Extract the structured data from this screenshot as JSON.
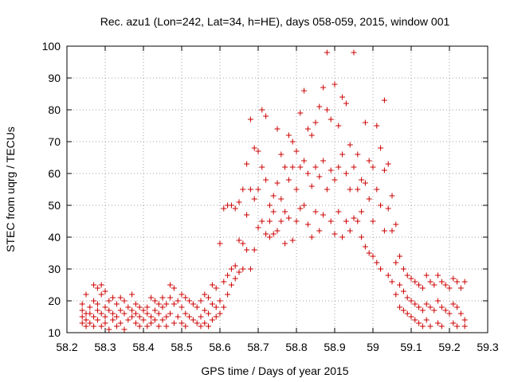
{
  "chart_data": {
    "type": "scatter",
    "title": "Rec. azu1 (Lon=242, Lat=34, h=HE), days 058-059, 2015, window 001",
    "xlabel": "GPS time / Days of year 2015",
    "ylabel": "STEC from uqrg / TECUs",
    "xlim": [
      58.2,
      59.3
    ],
    "ylim": [
      10,
      100
    ],
    "xticks": [
      "58.2",
      "58.3",
      "58.4",
      "58.5",
      "58.6",
      "58.7",
      "58.8",
      "58.9",
      "59",
      "59.1",
      "59.2",
      "59.3"
    ],
    "yticks": [
      "10",
      "20",
      "30",
      "40",
      "50",
      "60",
      "70",
      "80",
      "90",
      "100"
    ],
    "grid": true,
    "marker": "+",
    "color": "#cc0000",
    "points": [
      [
        58.24,
        19
      ],
      [
        58.24,
        17
      ],
      [
        58.24,
        15
      ],
      [
        58.24,
        13
      ],
      [
        58.25,
        22
      ],
      [
        58.25,
        16
      ],
      [
        58.25,
        14
      ],
      [
        58.25,
        12
      ],
      [
        58.26,
        18
      ],
      [
        58.26,
        16
      ],
      [
        58.26,
        13
      ],
      [
        58.27,
        25
      ],
      [
        58.27,
        20
      ],
      [
        58.27,
        15
      ],
      [
        58.27,
        12
      ],
      [
        58.28,
        24
      ],
      [
        58.28,
        19
      ],
      [
        58.28,
        17
      ],
      [
        58.28,
        14
      ],
      [
        58.29,
        25
      ],
      [
        58.29,
        22
      ],
      [
        58.29,
        16
      ],
      [
        58.29,
        12
      ],
      [
        58.3,
        23
      ],
      [
        58.3,
        18
      ],
      [
        58.3,
        15
      ],
      [
        58.3,
        13
      ],
      [
        58.31,
        20
      ],
      [
        58.31,
        17
      ],
      [
        58.31,
        11
      ],
      [
        58.32,
        21
      ],
      [
        58.32,
        16
      ],
      [
        58.32,
        14
      ],
      [
        58.33,
        19
      ],
      [
        58.33,
        15
      ],
      [
        58.33,
        12
      ],
      [
        58.34,
        21
      ],
      [
        58.34,
        17
      ],
      [
        58.34,
        13
      ],
      [
        58.35,
        20
      ],
      [
        58.35,
        16
      ],
      [
        58.35,
        11
      ],
      [
        58.36,
        18
      ],
      [
        58.36,
        14
      ],
      [
        58.37,
        22
      ],
      [
        58.37,
        17
      ],
      [
        58.37,
        15
      ],
      [
        58.38,
        19
      ],
      [
        58.38,
        16
      ],
      [
        58.38,
        13
      ],
      [
        58.39,
        18
      ],
      [
        58.39,
        15
      ],
      [
        58.39,
        12
      ],
      [
        58.4,
        17
      ],
      [
        58.4,
        14
      ],
      [
        58.41,
        18
      ],
      [
        58.41,
        16
      ],
      [
        58.41,
        12
      ],
      [
        58.42,
        21
      ],
      [
        58.42,
        15
      ],
      [
        58.42,
        13
      ],
      [
        58.43,
        20
      ],
      [
        58.43,
        17
      ],
      [
        58.43,
        14
      ],
      [
        58.44,
        19
      ],
      [
        58.44,
        16
      ],
      [
        58.44,
        12
      ],
      [
        58.45,
        21
      ],
      [
        58.45,
        18
      ],
      [
        58.45,
        14
      ],
      [
        58.46,
        19
      ],
      [
        58.46,
        15
      ],
      [
        58.46,
        12
      ],
      [
        58.47,
        25
      ],
      [
        58.47,
        21
      ],
      [
        58.47,
        16
      ],
      [
        58.48,
        24
      ],
      [
        58.48,
        19
      ],
      [
        58.48,
        13
      ],
      [
        58.49,
        20
      ],
      [
        58.49,
        15
      ],
      [
        58.5,
        22
      ],
      [
        58.5,
        18
      ],
      [
        58.5,
        13
      ],
      [
        58.51,
        21
      ],
      [
        58.51,
        16
      ],
      [
        58.51,
        12
      ],
      [
        58.52,
        20
      ],
      [
        58.52,
        15
      ],
      [
        58.53,
        19
      ],
      [
        58.53,
        14
      ],
      [
        58.54,
        18
      ],
      [
        58.54,
        13
      ],
      [
        58.55,
        20
      ],
      [
        58.55,
        15
      ],
      [
        58.55,
        12
      ],
      [
        58.56,
        22
      ],
      [
        58.56,
        17
      ],
      [
        58.56,
        13
      ],
      [
        58.57,
        21
      ],
      [
        58.57,
        16
      ],
      [
        58.57,
        12
      ],
      [
        58.58,
        25
      ],
      [
        58.58,
        19
      ],
      [
        58.58,
        14
      ],
      [
        58.59,
        24
      ],
      [
        58.59,
        18
      ],
      [
        58.59,
        15
      ],
      [
        58.6,
        38
      ],
      [
        58.6,
        20
      ],
      [
        58.6,
        16
      ],
      [
        58.61,
        49
      ],
      [
        58.61,
        26
      ],
      [
        58.61,
        18
      ],
      [
        58.62,
        50
      ],
      [
        58.62,
        28
      ],
      [
        58.62,
        22
      ],
      [
        58.63,
        50
      ],
      [
        58.63,
        30
      ],
      [
        58.63,
        25
      ],
      [
        58.64,
        49
      ],
      [
        58.64,
        31
      ],
      [
        58.64,
        27
      ],
      [
        58.65,
        51
      ],
      [
        58.65,
        39
      ],
      [
        58.65,
        29
      ],
      [
        58.66,
        55
      ],
      [
        58.66,
        38
      ],
      [
        58.66,
        30
      ],
      [
        58.67,
        63
      ],
      [
        58.67,
        47
      ],
      [
        58.67,
        36
      ],
      [
        58.68,
        77
      ],
      [
        58.68,
        55
      ],
      [
        58.68,
        30
      ],
      [
        58.69,
        68
      ],
      [
        58.69,
        52
      ],
      [
        58.69,
        36
      ],
      [
        58.7,
        67
      ],
      [
        58.7,
        55
      ],
      [
        58.7,
        43
      ],
      [
        58.71,
        80
      ],
      [
        58.71,
        62
      ],
      [
        58.71,
        45
      ],
      [
        58.72,
        78
      ],
      [
        58.72,
        58
      ],
      [
        58.72,
        41
      ],
      [
        58.73,
        50
      ],
      [
        58.73,
        45
      ],
      [
        58.73,
        40
      ],
      [
        58.74,
        53
      ],
      [
        58.74,
        48
      ],
      [
        58.74,
        41
      ],
      [
        58.75,
        74
      ],
      [
        58.75,
        57
      ],
      [
        58.75,
        42
      ],
      [
        58.76,
        66
      ],
      [
        58.76,
        52
      ],
      [
        58.76,
        45
      ],
      [
        58.77,
        62
      ],
      [
        58.77,
        48
      ],
      [
        58.77,
        38
      ],
      [
        58.78,
        72
      ],
      [
        58.78,
        58
      ],
      [
        58.78,
        46
      ],
      [
        58.79,
        70
      ],
      [
        58.79,
        62
      ],
      [
        58.79,
        39
      ],
      [
        58.8,
        67
      ],
      [
        58.8,
        55
      ],
      [
        58.8,
        45
      ],
      [
        58.81,
        79
      ],
      [
        58.81,
        62
      ],
      [
        58.81,
        49
      ],
      [
        58.82,
        86
      ],
      [
        58.82,
        64
      ],
      [
        58.82,
        50
      ],
      [
        58.83,
        74
      ],
      [
        58.83,
        60
      ],
      [
        58.83,
        44
      ],
      [
        58.84,
        72
      ],
      [
        58.84,
        56
      ],
      [
        58.84,
        40
      ],
      [
        58.85,
        76
      ],
      [
        58.85,
        62
      ],
      [
        58.85,
        48
      ],
      [
        58.86,
        81
      ],
      [
        58.86,
        59
      ],
      [
        58.86,
        42
      ],
      [
        58.87,
        87
      ],
      [
        58.87,
        64
      ],
      [
        58.87,
        47
      ],
      [
        58.88,
        98
      ],
      [
        58.88,
        80
      ],
      [
        58.88,
        55
      ],
      [
        58.89,
        77
      ],
      [
        58.89,
        61
      ],
      [
        58.89,
        45
      ],
      [
        58.9,
        88
      ],
      [
        58.9,
        58
      ],
      [
        58.9,
        41
      ],
      [
        58.91,
        75
      ],
      [
        58.91,
        62
      ],
      [
        58.91,
        48
      ],
      [
        58.92,
        84
      ],
      [
        58.92,
        66
      ],
      [
        58.92,
        40
      ],
      [
        58.93,
        82
      ],
      [
        58.93,
        60
      ],
      [
        58.93,
        45
      ],
      [
        58.94,
        69
      ],
      [
        58.94,
        55
      ],
      [
        58.94,
        42
      ],
      [
        58.95,
        98
      ],
      [
        58.95,
        62
      ],
      [
        58.95,
        46
      ],
      [
        58.96,
        66
      ],
      [
        58.96,
        55
      ],
      [
        58.96,
        45
      ],
      [
        58.97,
        58
      ],
      [
        58.97,
        48
      ],
      [
        58.97,
        40
      ],
      [
        58.98,
        76
      ],
      [
        58.98,
        57
      ],
      [
        58.98,
        37
      ],
      [
        58.99,
        64
      ],
      [
        58.99,
        52
      ],
      [
        58.99,
        35
      ],
      [
        59.0,
        62
      ],
      [
        59.0,
        45
      ],
      [
        59.0,
        34
      ],
      [
        59.01,
        75
      ],
      [
        59.01,
        55
      ],
      [
        59.01,
        32
      ],
      [
        59.02,
        68
      ],
      [
        59.02,
        50
      ],
      [
        59.02,
        30
      ],
      [
        59.03,
        83
      ],
      [
        59.03,
        61
      ],
      [
        59.03,
        42
      ],
      [
        59.04,
        63
      ],
      [
        59.04,
        49
      ],
      [
        59.04,
        28
      ],
      [
        59.05,
        53
      ],
      [
        59.05,
        42
      ],
      [
        59.05,
        26
      ],
      [
        59.06,
        44
      ],
      [
        59.06,
        32
      ],
      [
        59.06,
        22
      ],
      [
        59.07,
        34
      ],
      [
        59.07,
        25
      ],
      [
        59.07,
        18
      ],
      [
        59.08,
        30
      ],
      [
        59.08,
        23
      ],
      [
        59.08,
        17
      ],
      [
        59.09,
        28
      ],
      [
        59.09,
        21
      ],
      [
        59.09,
        16
      ],
      [
        59.1,
        27
      ],
      [
        59.1,
        20
      ],
      [
        59.1,
        15
      ],
      [
        59.11,
        26
      ],
      [
        59.11,
        19
      ],
      [
        59.11,
        14
      ],
      [
        59.12,
        25
      ],
      [
        59.12,
        18
      ],
      [
        59.12,
        13
      ],
      [
        59.13,
        24
      ],
      [
        59.13,
        17
      ],
      [
        59.13,
        12
      ],
      [
        59.14,
        28
      ],
      [
        59.14,
        19
      ],
      [
        59.14,
        14
      ],
      [
        59.15,
        26
      ],
      [
        59.15,
        18
      ],
      [
        59.15,
        12
      ],
      [
        59.16,
        25
      ],
      [
        59.16,
        17
      ],
      [
        59.17,
        28
      ],
      [
        59.17,
        20
      ],
      [
        59.17,
        13
      ],
      [
        59.18,
        26
      ],
      [
        59.18,
        18
      ],
      [
        59.18,
        12
      ],
      [
        59.19,
        25
      ],
      [
        59.19,
        17
      ],
      [
        59.2,
        24
      ],
      [
        59.2,
        16
      ],
      [
        59.21,
        27
      ],
      [
        59.21,
        19
      ],
      [
        59.21,
        13
      ],
      [
        59.22,
        26
      ],
      [
        59.22,
        18
      ],
      [
        59.22,
        12
      ],
      [
        59.23,
        24
      ],
      [
        59.23,
        16
      ],
      [
        59.24,
        26
      ],
      [
        59.24,
        14
      ],
      [
        59.24,
        12
      ]
    ]
  }
}
